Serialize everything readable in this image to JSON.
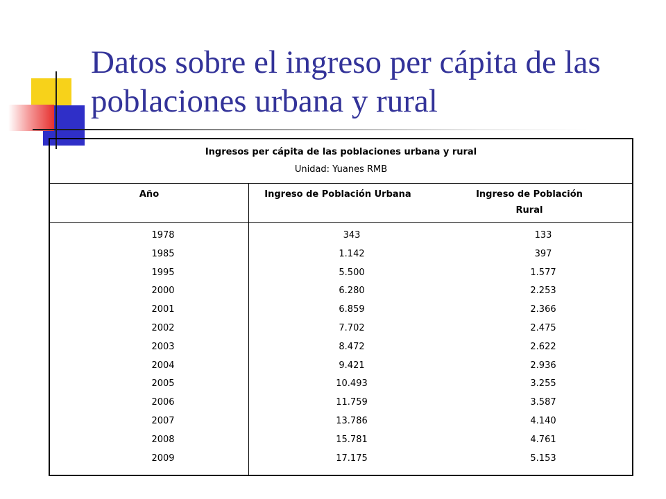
{
  "slide": {
    "title": "Datos sobre el ingreso per cápita de las poblaciones urbana y rural"
  },
  "table": {
    "title": "Ingresos per cápita de las poblaciones urbana y rural",
    "unit": "Unidad: Yuanes RMB",
    "headers": {
      "year": "Año",
      "urban": "Ingreso de Población Urbana",
      "rural_line1": "Ingreso de Población",
      "rural_line2": "Rural"
    },
    "years": [
      "1978",
      "1985",
      "1995",
      "2000",
      "2001",
      "2002",
      "2003",
      "2004",
      "2005",
      "2006",
      "2007",
      "2008",
      "2009"
    ],
    "urban": [
      "343",
      "1.142",
      "5.500",
      "6.280",
      "6.859",
      "7.702",
      "8.472",
      "9.421",
      "10.493",
      "11.759",
      "13.786",
      "15.781",
      "17.175"
    ],
    "rural": [
      "133",
      "397",
      "1.577",
      "2.253",
      "2.366",
      "2.475",
      "2.622",
      "2.936",
      "3.255",
      "3.587",
      "4.140",
      "4.761",
      "5.153"
    ]
  },
  "colors": {
    "title": "#333399",
    "deco_yellow": "#f7d21a",
    "deco_blue": "#2f2fc8",
    "deco_red": "#e6312f"
  }
}
